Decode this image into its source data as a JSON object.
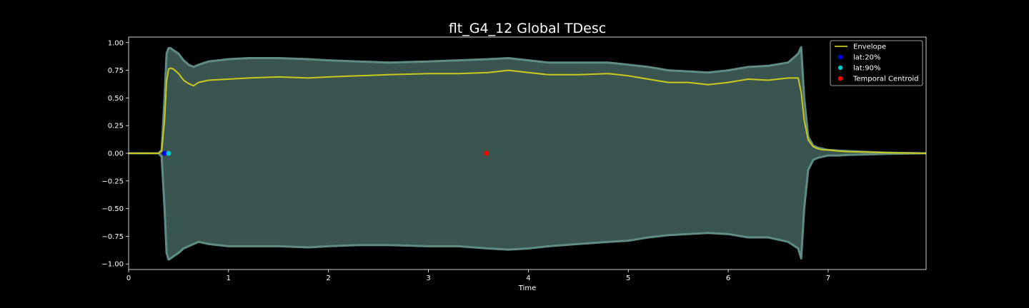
{
  "chart_data": {
    "type": "line",
    "title": "flt_G4_12 Global TDesc",
    "xlabel": "Time",
    "ylabel": "",
    "xlim": [
      0,
      7.98
    ],
    "ylim": [
      -1.05,
      1.05
    ],
    "x_ticks": [
      0,
      1,
      2,
      3,
      4,
      5,
      6,
      7
    ],
    "x_tick_labels": [
      "0",
      "1",
      "2",
      "3",
      "4",
      "5",
      "6",
      "7"
    ],
    "y_ticks": [
      1.0,
      0.75,
      0.5,
      0.25,
      0.0,
      -0.25,
      -0.5,
      -0.75,
      -1.0
    ],
    "y_tick_labels": [
      "1.00",
      "0.75",
      "0.50",
      "0.25",
      "0.00",
      "−0.25",
      "−0.50",
      "−0.75",
      "−1.00"
    ],
    "grid": false,
    "legend_position": "top-right",
    "colors": {
      "background": "#000000",
      "waveform_fill": "#3a5550",
      "waveform_edge": "#5f8c84",
      "envelope": "#c8c81e",
      "lat20": "#0000ff",
      "lat90": "#00c8c8",
      "centroid": "#ff0000",
      "text": "#ffffff"
    },
    "series": [
      {
        "name": "Envelope",
        "kind": "line",
        "color": "#c8c81e",
        "x": [
          0,
          0.3,
          0.33,
          0.36,
          0.38,
          0.4,
          0.42,
          0.45,
          0.5,
          0.55,
          0.6,
          0.65,
          0.7,
          0.8,
          1.0,
          1.2,
          1.5,
          1.8,
          2.0,
          2.3,
          2.6,
          3.0,
          3.3,
          3.6,
          3.8,
          4.0,
          4.2,
          4.5,
          4.8,
          5.0,
          5.2,
          5.4,
          5.6,
          5.8,
          6.0,
          6.2,
          6.4,
          6.6,
          6.7,
          6.73,
          6.76,
          6.8,
          6.85,
          6.9,
          6.95,
          7.0,
          7.1,
          7.2,
          7.4,
          7.6,
          7.98
        ],
        "y": [
          0,
          0,
          0.02,
          0.3,
          0.65,
          0.76,
          0.77,
          0.76,
          0.72,
          0.66,
          0.63,
          0.61,
          0.64,
          0.66,
          0.67,
          0.68,
          0.69,
          0.68,
          0.69,
          0.7,
          0.71,
          0.72,
          0.72,
          0.73,
          0.75,
          0.73,
          0.71,
          0.71,
          0.72,
          0.7,
          0.67,
          0.64,
          0.64,
          0.62,
          0.64,
          0.67,
          0.66,
          0.68,
          0.68,
          0.55,
          0.3,
          0.12,
          0.06,
          0.04,
          0.03,
          0.03,
          0.02,
          0.015,
          0.01,
          0.005,
          0
        ]
      },
      {
        "name": "Waveform upper",
        "kind": "fill-upper",
        "x": [
          0,
          0.3,
          0.33,
          0.36,
          0.38,
          0.4,
          0.42,
          0.45,
          0.5,
          0.55,
          0.6,
          0.65,
          0.7,
          0.8,
          1.0,
          1.2,
          1.5,
          1.8,
          2.0,
          2.3,
          2.6,
          3.0,
          3.3,
          3.6,
          3.8,
          4.0,
          4.2,
          4.5,
          4.8,
          5.0,
          5.2,
          5.4,
          5.6,
          5.8,
          6.0,
          6.2,
          6.4,
          6.6,
          6.7,
          6.73,
          6.76,
          6.8,
          6.85,
          6.9,
          6.95,
          7.0,
          7.1,
          7.2,
          7.4,
          7.6,
          7.98
        ],
        "y": [
          0,
          0,
          0.03,
          0.5,
          0.9,
          0.95,
          0.95,
          0.93,
          0.9,
          0.84,
          0.8,
          0.78,
          0.8,
          0.83,
          0.85,
          0.86,
          0.86,
          0.85,
          0.84,
          0.83,
          0.82,
          0.83,
          0.84,
          0.85,
          0.86,
          0.84,
          0.82,
          0.82,
          0.82,
          0.8,
          0.78,
          0.75,
          0.74,
          0.73,
          0.75,
          0.78,
          0.79,
          0.82,
          0.9,
          0.96,
          0.5,
          0.15,
          0.07,
          0.05,
          0.04,
          0.03,
          0.025,
          0.02,
          0.012,
          0.006,
          0
        ]
      },
      {
        "name": "Waveform lower",
        "kind": "fill-lower",
        "x": [
          0,
          0.3,
          0.33,
          0.36,
          0.38,
          0.4,
          0.42,
          0.45,
          0.5,
          0.55,
          0.6,
          0.65,
          0.7,
          0.8,
          1.0,
          1.2,
          1.5,
          1.8,
          2.0,
          2.3,
          2.6,
          3.0,
          3.3,
          3.6,
          3.8,
          4.0,
          4.2,
          4.5,
          4.8,
          5.0,
          5.2,
          5.4,
          5.6,
          5.8,
          6.0,
          6.2,
          6.4,
          6.6,
          6.7,
          6.73,
          6.76,
          6.8,
          6.85,
          6.9,
          6.95,
          7.0,
          7.1,
          7.2,
          7.4,
          7.6,
          7.98
        ],
        "y": [
          0,
          0,
          -0.03,
          -0.5,
          -0.9,
          -0.96,
          -0.95,
          -0.93,
          -0.9,
          -0.86,
          -0.84,
          -0.82,
          -0.8,
          -0.82,
          -0.84,
          -0.84,
          -0.84,
          -0.85,
          -0.84,
          -0.83,
          -0.83,
          -0.84,
          -0.84,
          -0.86,
          -0.87,
          -0.86,
          -0.84,
          -0.82,
          -0.8,
          -0.79,
          -0.76,
          -0.74,
          -0.73,
          -0.72,
          -0.73,
          -0.76,
          -0.76,
          -0.8,
          -0.86,
          -0.95,
          -0.5,
          -0.15,
          -0.06,
          -0.04,
          -0.03,
          -0.02,
          -0.02,
          -0.015,
          -0.01,
          -0.005,
          0
        ]
      }
    ],
    "points": [
      {
        "name": "lat:20%",
        "x": 0.36,
        "y": 0.0,
        "color": "#0000ff"
      },
      {
        "name": "lat:90%",
        "x": 0.4,
        "y": 0.0,
        "color": "#00c8c8"
      },
      {
        "name": "Temporal Centroid",
        "x": 3.58,
        "y": 0.0,
        "color": "#ff0000"
      }
    ],
    "legend": [
      {
        "label": "Envelope",
        "kind": "line",
        "color": "#c8c81e"
      },
      {
        "label": "lat:20%",
        "kind": "marker",
        "color": "#0000ff"
      },
      {
        "label": "lat:90%",
        "kind": "marker",
        "color": "#00c8c8"
      },
      {
        "label": "Temporal Centroid",
        "kind": "marker",
        "color": "#ff0000"
      }
    ]
  }
}
